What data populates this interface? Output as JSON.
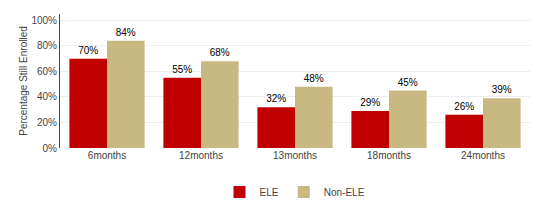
{
  "chart_data": {
    "type": "bar",
    "categories": [
      "6months",
      "12months",
      "13months",
      "18months",
      "24months"
    ],
    "series": [
      {
        "name": "ELE",
        "color": "#C00000",
        "values": [
          70,
          55,
          32,
          29,
          26
        ],
        "value_labels": [
          "70%",
          "55%",
          "32%",
          "29%",
          "26%"
        ]
      },
      {
        "name": "Non-ELE",
        "color": "#C8B882",
        "values": [
          84,
          68,
          48,
          45,
          39
        ],
        "value_labels": [
          "84%",
          "68%",
          "48%",
          "45%",
          "39%"
        ]
      }
    ],
    "ylabel": "Percentage Still Enrolled",
    "ylim": [
      0,
      105
    ],
    "yticks": [
      {
        "value": 0,
        "label": "0%"
      },
      {
        "value": 20,
        "label": "20%"
      },
      {
        "value": 40,
        "label": "40%"
      },
      {
        "value": 60,
        "label": "60%"
      },
      {
        "value": 80,
        "label": "80%"
      },
      {
        "value": 100,
        "label": "100%"
      }
    ],
    "grid": true,
    "data_labels": true,
    "legend": "bottom"
  }
}
